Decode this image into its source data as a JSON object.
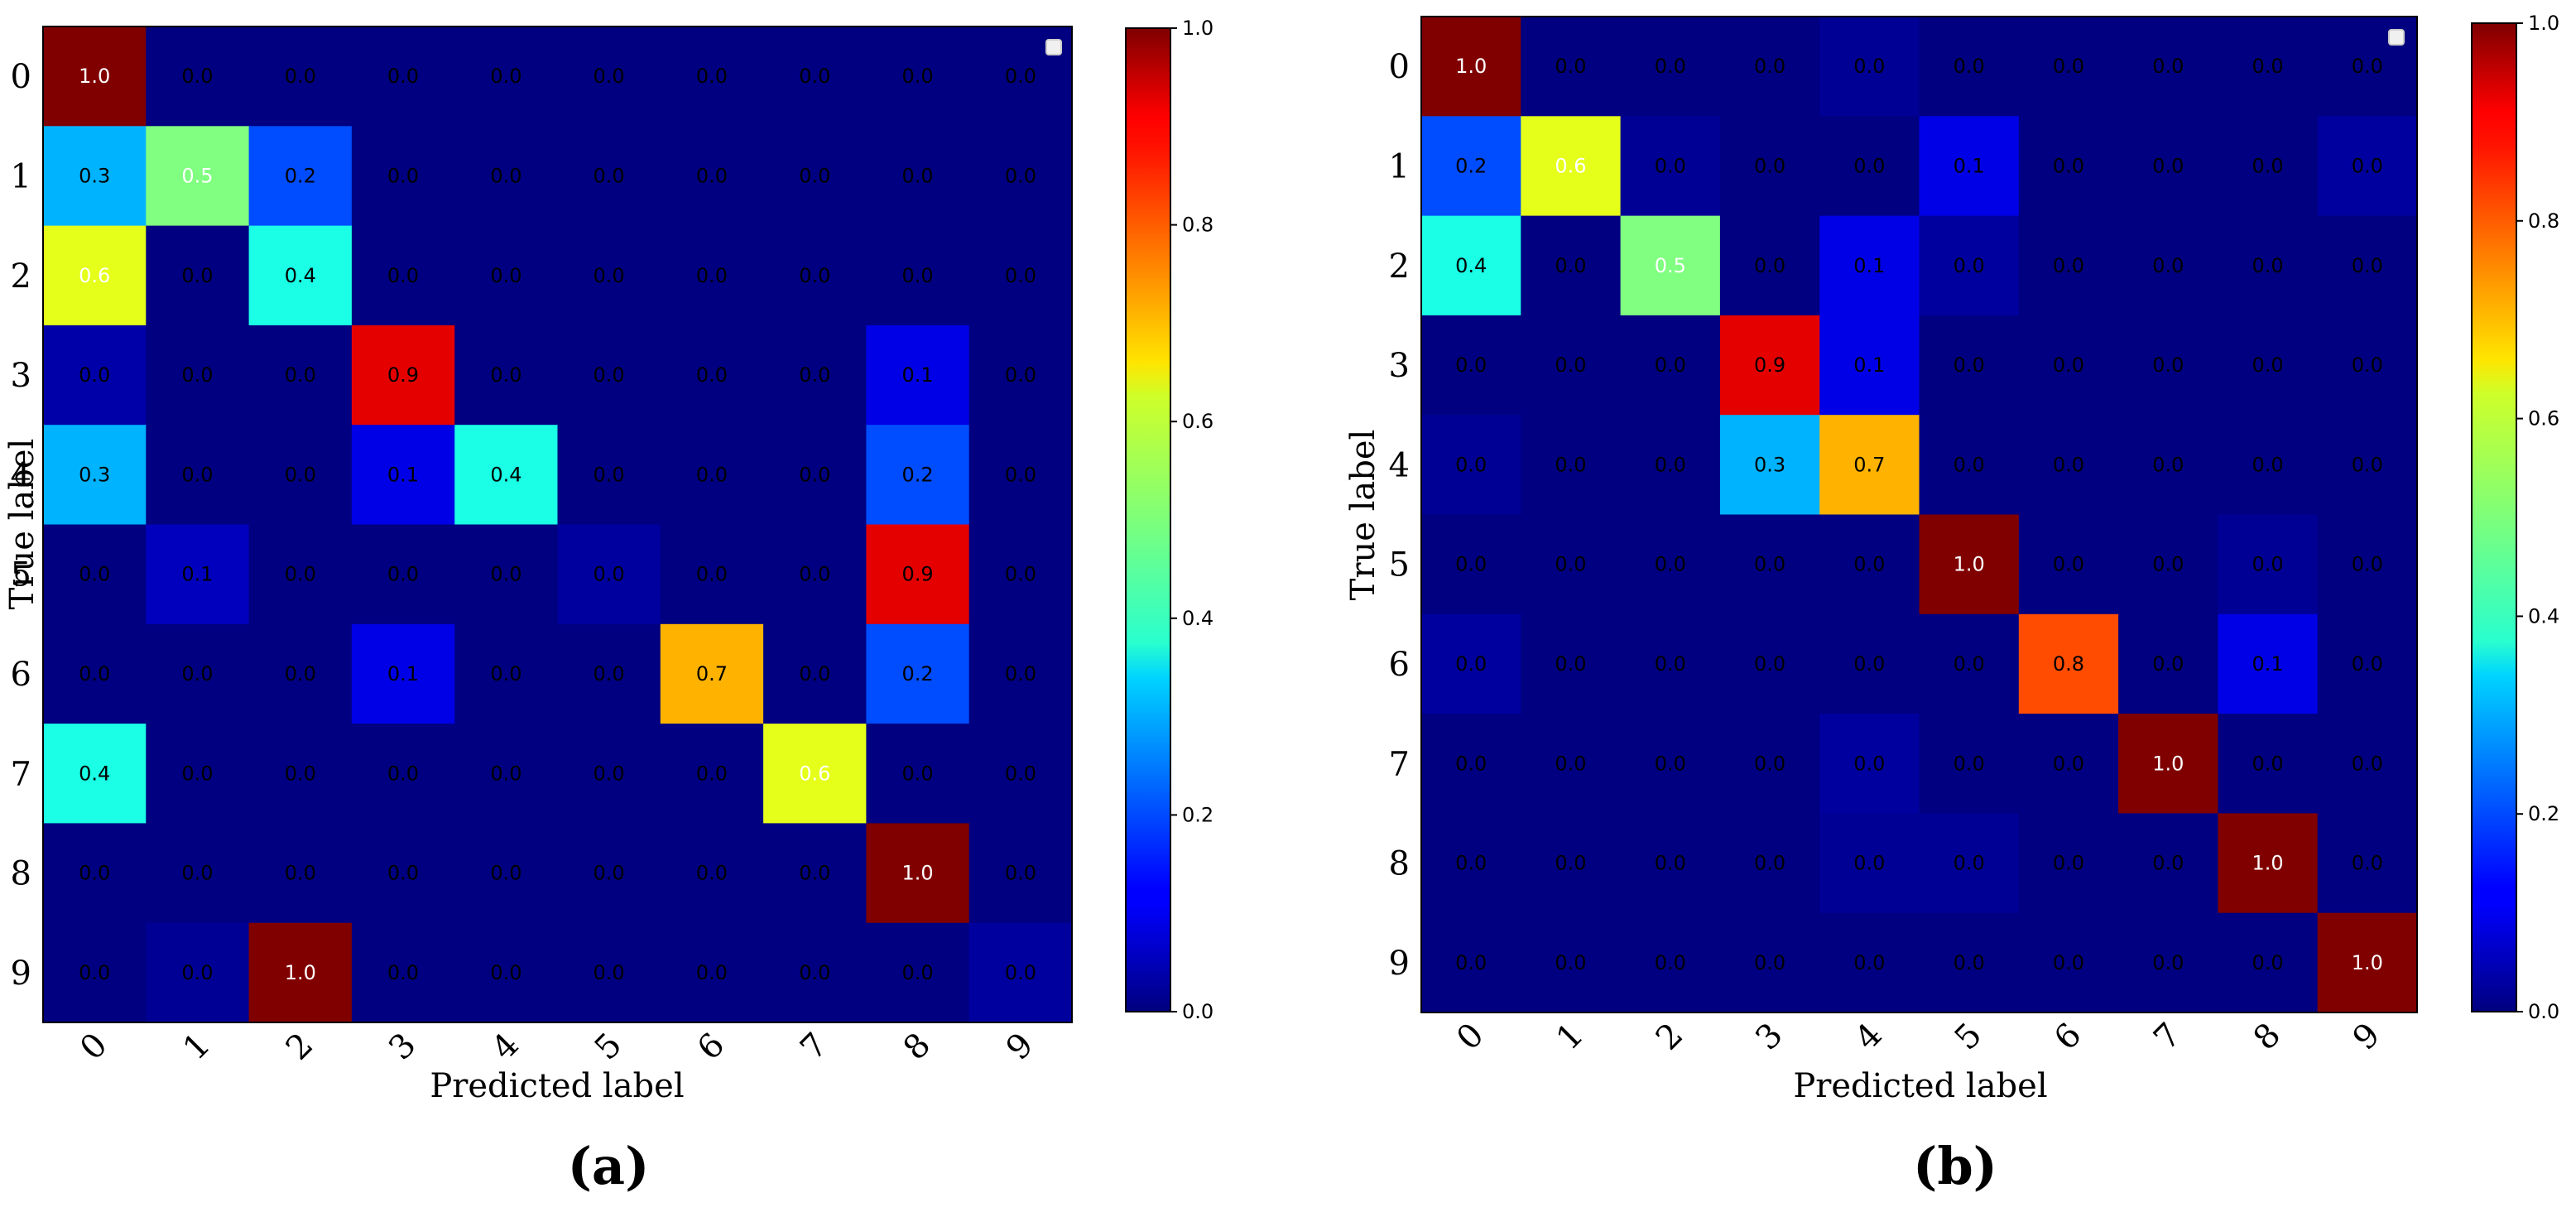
{
  "chart_data": [
    {
      "type": "heatmap",
      "panel_label": "(a)",
      "xlabel": "Predicted label",
      "ylabel": "True label",
      "x_categories": [
        "0",
        "1",
        "2",
        "3",
        "4",
        "5",
        "6",
        "7",
        "8",
        "9"
      ],
      "y_categories": [
        "0",
        "1",
        "2",
        "3",
        "4",
        "5",
        "6",
        "7",
        "8",
        "9"
      ],
      "colorbar_range": [
        0.0,
        1.0
      ],
      "colorbar_ticks": [
        "0.0",
        "0.2",
        "0.4",
        "0.6",
        "0.8",
        "1.0"
      ],
      "colormap": "jet",
      "values": [
        [
          1.0,
          0.0,
          0.0,
          0.0,
          0.0,
          0.0,
          0.0,
          0.0,
          0.0,
          0.0
        ],
        [
          0.3,
          0.5,
          0.2,
          0.0,
          0.0,
          0.0,
          0.0,
          0.0,
          0.0,
          0.0
        ],
        [
          0.6,
          0.0,
          0.4,
          0.0,
          0.0,
          0.0,
          0.0,
          0.0,
          0.0,
          0.0
        ],
        [
          0.04,
          0.0,
          0.0,
          0.9,
          0.0,
          0.0,
          0.0,
          0.0,
          0.1,
          0.0
        ],
        [
          0.3,
          0.0,
          0.0,
          0.1,
          0.4,
          0.0,
          0.0,
          0.0,
          0.2,
          0.0
        ],
        [
          0.0,
          0.06,
          0.0,
          0.0,
          0.0,
          0.03,
          0.0,
          0.0,
          0.9,
          0.0
        ],
        [
          0.0,
          0.0,
          0.0,
          0.1,
          0.0,
          0.0,
          0.7,
          0.0,
          0.2,
          0.0
        ],
        [
          0.4,
          0.0,
          0.0,
          0.0,
          0.0,
          0.0,
          0.0,
          0.6,
          0.0,
          0.0
        ],
        [
          0.0,
          0.0,
          0.0,
          0.0,
          0.0,
          0.0,
          0.0,
          0.0,
          1.0,
          0.0
        ],
        [
          0.0,
          0.02,
          1.0,
          0.0,
          0.0,
          0.0,
          0.0,
          0.0,
          0.0,
          0.03
        ]
      ],
      "labels": [
        [
          "1.0",
          "0.0",
          "0.0",
          "0.0",
          "0.0",
          "0.0",
          "0.0",
          "0.0",
          "0.0",
          "0.0"
        ],
        [
          "0.3",
          "0.5",
          "0.2",
          "0.0",
          "0.0",
          "0.0",
          "0.0",
          "0.0",
          "0.0",
          "0.0"
        ],
        [
          "0.6",
          "0.0",
          "0.4",
          "0.0",
          "0.0",
          "0.0",
          "0.0",
          "0.0",
          "0.0",
          "0.0"
        ],
        [
          "0.0",
          "0.0",
          "0.0",
          "0.9",
          "0.0",
          "0.0",
          "0.0",
          "0.0",
          "0.1",
          "0.0"
        ],
        [
          "0.3",
          "0.0",
          "0.0",
          "0.1",
          "0.4",
          "0.0",
          "0.0",
          "0.0",
          "0.2",
          "0.0"
        ],
        [
          "0.0",
          "0.1",
          "0.0",
          "0.0",
          "0.0",
          "0.0",
          "0.0",
          "0.0",
          "0.9",
          "0.0"
        ],
        [
          "0.0",
          "0.0",
          "0.0",
          "0.1",
          "0.0",
          "0.0",
          "0.7",
          "0.0",
          "0.2",
          "0.0"
        ],
        [
          "0.4",
          "0.0",
          "0.0",
          "0.0",
          "0.0",
          "0.0",
          "0.0",
          "0.6",
          "0.0",
          "0.0"
        ],
        [
          "0.0",
          "0.0",
          "0.0",
          "0.0",
          "0.0",
          "0.0",
          "0.0",
          "0.0",
          "1.0",
          "0.0"
        ],
        [
          "0.0",
          "0.0",
          "1.0",
          "0.0",
          "0.0",
          "0.0",
          "0.0",
          "0.0",
          "0.0",
          "0.0"
        ]
      ]
    },
    {
      "type": "heatmap",
      "panel_label": "(b)",
      "xlabel": "Predicted label",
      "ylabel": "True label",
      "x_categories": [
        "0",
        "1",
        "2",
        "3",
        "4",
        "5",
        "6",
        "7",
        "8",
        "9"
      ],
      "y_categories": [
        "0",
        "1",
        "2",
        "3",
        "4",
        "5",
        "6",
        "7",
        "8",
        "9"
      ],
      "colorbar_range": [
        0.0,
        1.0
      ],
      "colorbar_ticks": [
        "0.0",
        "0.2",
        "0.4",
        "0.6",
        "0.8",
        "1.0"
      ],
      "colormap": "jet",
      "values": [
        [
          1.0,
          0.0,
          0.0,
          0.0,
          0.02,
          0.0,
          0.0,
          0.0,
          0.0,
          0.0
        ],
        [
          0.2,
          0.6,
          0.02,
          0.0,
          0.0,
          0.1,
          0.0,
          0.0,
          0.0,
          0.03
        ],
        [
          0.4,
          0.0,
          0.5,
          0.0,
          0.1,
          0.03,
          0.0,
          0.0,
          0.0,
          0.0
        ],
        [
          0.0,
          0.0,
          0.0,
          0.9,
          0.1,
          0.0,
          0.0,
          0.0,
          0.0,
          0.0
        ],
        [
          0.02,
          0.0,
          0.0,
          0.3,
          0.7,
          0.0,
          0.0,
          0.0,
          0.0,
          0.0
        ],
        [
          0.0,
          0.0,
          0.0,
          0.0,
          0.0,
          1.0,
          0.0,
          0.0,
          0.02,
          0.0
        ],
        [
          0.03,
          0.0,
          0.0,
          0.0,
          0.0,
          0.0,
          0.8,
          0.0,
          0.1,
          0.0
        ],
        [
          0.0,
          0.0,
          0.0,
          0.0,
          0.03,
          0.0,
          0.0,
          1.0,
          0.0,
          0.0
        ],
        [
          0.0,
          0.0,
          0.0,
          0.0,
          0.02,
          0.02,
          0.0,
          0.0,
          1.0,
          0.0
        ],
        [
          0.0,
          0.0,
          0.0,
          0.0,
          0.0,
          0.0,
          0.0,
          0.0,
          0.0,
          1.0
        ]
      ],
      "labels": [
        [
          "1.0",
          "0.0",
          "0.0",
          "0.0",
          "0.0",
          "0.0",
          "0.0",
          "0.0",
          "0.0",
          "0.0"
        ],
        [
          "0.2",
          "0.6",
          "0.0",
          "0.0",
          "0.0",
          "0.1",
          "0.0",
          "0.0",
          "0.0",
          "0.0"
        ],
        [
          "0.4",
          "0.0",
          "0.5",
          "0.0",
          "0.1",
          "0.0",
          "0.0",
          "0.0",
          "0.0",
          "0.0"
        ],
        [
          "0.0",
          "0.0",
          "0.0",
          "0.9",
          "0.1",
          "0.0",
          "0.0",
          "0.0",
          "0.0",
          "0.0"
        ],
        [
          "0.0",
          "0.0",
          "0.0",
          "0.3",
          "0.7",
          "0.0",
          "0.0",
          "0.0",
          "0.0",
          "0.0"
        ],
        [
          "0.0",
          "0.0",
          "0.0",
          "0.0",
          "0.0",
          "1.0",
          "0.0",
          "0.0",
          "0.0",
          "0.0"
        ],
        [
          "0.0",
          "0.0",
          "0.0",
          "0.0",
          "0.0",
          "0.0",
          "0.8",
          "0.0",
          "0.1",
          "0.0"
        ],
        [
          "0.0",
          "0.0",
          "0.0",
          "0.0",
          "0.0",
          "0.0",
          "0.0",
          "1.0",
          "0.0",
          "0.0"
        ],
        [
          "0.0",
          "0.0",
          "0.0",
          "0.0",
          "0.0",
          "0.0",
          "0.0",
          "0.0",
          "1.0",
          "0.0"
        ],
        [
          "0.0",
          "0.0",
          "0.0",
          "0.0",
          "0.0",
          "0.0",
          "0.0",
          "0.0",
          "0.0",
          "1.0"
        ]
      ]
    }
  ]
}
